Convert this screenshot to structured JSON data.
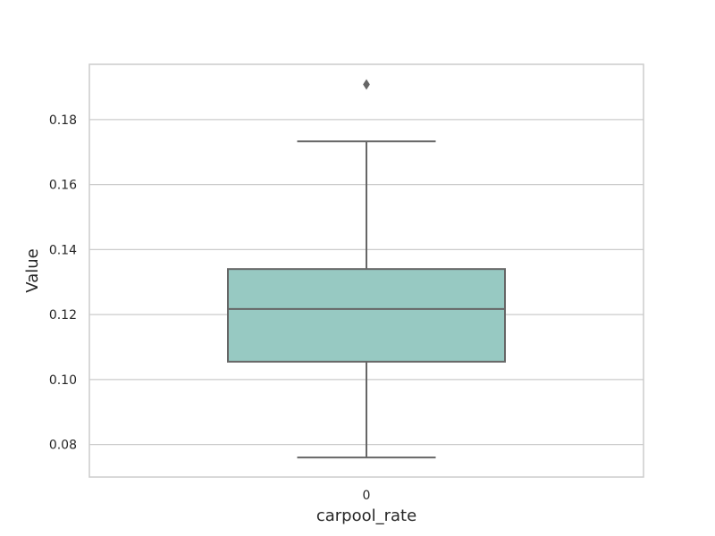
{
  "chart_data": {
    "type": "box",
    "title": "",
    "xlabel": "carpool_rate",
    "ylabel": "Value",
    "categories": [
      "0"
    ],
    "ylim": [
      0.07,
      0.197
    ],
    "yticks": [
      "0.08",
      "0.10",
      "0.12",
      "0.14",
      "0.16",
      "0.18"
    ],
    "grid": true,
    "series": [
      {
        "category": "0",
        "whisker_low": 0.076,
        "q1": 0.1055,
        "median": 0.1217,
        "q3": 0.134,
        "whisker_high": 0.1733,
        "outliers": [
          0.1908
        ]
      }
    ]
  },
  "colors": {
    "box_fill": "#97c9c2",
    "line": "#666666",
    "grid": "#cccccc",
    "text": "#262626"
  }
}
